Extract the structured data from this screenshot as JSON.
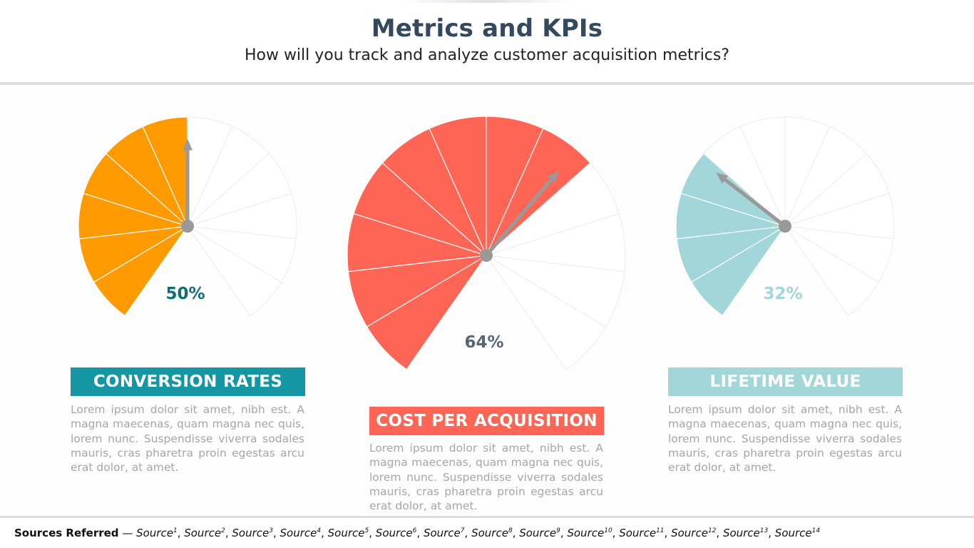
{
  "header": {
    "title": "Metrics and KPIs",
    "subtitle": "How will you track and analyze customer acquisition metrics?"
  },
  "gauges": [
    {
      "id": "conversion-rates",
      "value_percent": 50,
      "value_label": "50%",
      "fill_color": "#FF9B00",
      "value_text_color": "#0E6E75",
      "label": "CONVERSION RATES",
      "label_color": "#1497A3",
      "description": "Lorem ipsum dolor sit amet, nibh est. A magna maecenas, quam magna nec quis, lorem nunc. Suspendisse viverra sodales mauris, cras pharetra proin egestas arcu erat dolor, at amet."
    },
    {
      "id": "cost-per-acquisition",
      "value_percent": 64,
      "value_label": "64%",
      "fill_color": "#FF6555",
      "value_text_color": "#556677",
      "label": "COST PER ACQUISITION",
      "label_color": "#FF6555",
      "description": "Lorem ipsum dolor sit amet, nibh est. A magna maecenas, quam magna nec quis, lorem nunc. Suspendisse viverra sodales mauris, cras pharetra proin egestas arcu erat dolor, at amet."
    },
    {
      "id": "lifetime-value",
      "value_percent": 32,
      "value_label": "32%",
      "fill_color": "#A3D6D9",
      "value_text_color": "#A3D6D9",
      "label": "LIFETIME VALUE",
      "label_color": "#A3D6D9",
      "description": "Lorem ipsum dolor sit amet, nibh est. A magna maecenas, quam magna nec quis, lorem nunc. Suspendisse viverra sodales mauris, cras pharetra proin egestas arcu erat dolor, at amet."
    }
  ],
  "needle_color": "#999999",
  "footer": {
    "label": "Sources Referred",
    "separator": "—",
    "sources": [
      {
        "text": "Source",
        "sup": "1"
      },
      {
        "text": "Source",
        "sup": "2"
      },
      {
        "text": "Source",
        "sup": "3"
      },
      {
        "text": "Source",
        "sup": "4"
      },
      {
        "text": "Source",
        "sup": "5"
      },
      {
        "text": "Source",
        "sup": "6"
      },
      {
        "text": "Source",
        "sup": "7"
      },
      {
        "text": "Source",
        "sup": "8"
      },
      {
        "text": "Source",
        "sup": "9"
      },
      {
        "text": "Source",
        "sup": "10"
      },
      {
        "text": "Source",
        "sup": "11"
      },
      {
        "text": "Source",
        "sup": "12"
      },
      {
        "text": "Source",
        "sup": "13"
      },
      {
        "text": "Source",
        "sup": "14"
      }
    ]
  }
}
